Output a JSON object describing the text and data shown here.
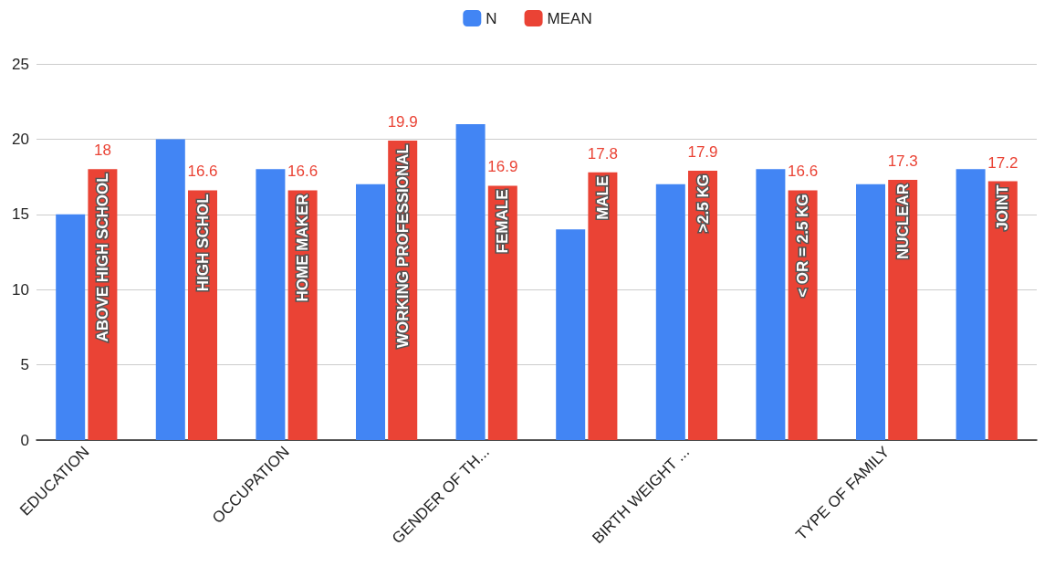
{
  "chart_data": {
    "type": "bar",
    "categories": [
      "EDUCATION",
      null,
      "OCCUPATION",
      null,
      "GENDER OF TH...",
      null,
      "BIRTH WEIGHT ...",
      null,
      "TYPE OF FAMILY",
      null
    ],
    "series": [
      {
        "name": "N",
        "color": "#4285f4",
        "values": [
          15,
          20,
          18,
          17,
          21,
          14,
          17,
          18,
          17,
          18
        ]
      },
      {
        "name": "MEAN",
        "color": "#ea4335",
        "values": [
          18,
          16.6,
          16.6,
          19.9,
          16.9,
          17.8,
          17.9,
          16.6,
          17.3,
          17.2
        ],
        "value_labels": [
          "18",
          "16.6",
          "16.6",
          "19.9",
          "16.9",
          "17.8",
          "17.9",
          "16.6",
          "17.3",
          "17.2"
        ]
      }
    ],
    "annotations": [
      "ABOVE HIGH SCHOOL",
      "HIGH SCHOL",
      "HOME MAKER",
      "WORKING PROFESSIONAL",
      "FEMALE",
      "MALE",
      ">2.5 KG",
      "< OR = 2.5 KG",
      "NUCLEAR",
      "JOINT"
    ],
    "ylim": [
      0,
      25
    ],
    "yticks": [
      0,
      5,
      10,
      15,
      20,
      25
    ],
    "grid": "y",
    "legend": "top"
  }
}
